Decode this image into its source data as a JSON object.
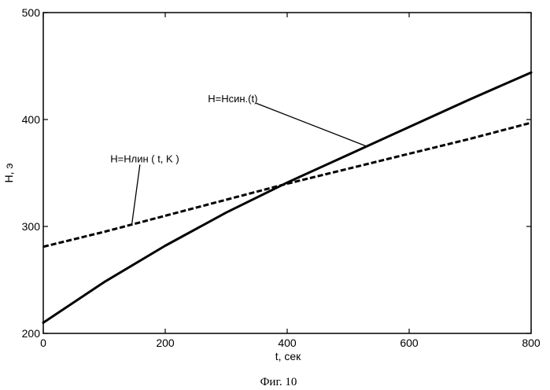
{
  "chart_data": {
    "type": "line",
    "xlabel": "t, сек",
    "ylabel": "H, э",
    "xlim": [
      0,
      800
    ],
    "ylim": [
      200,
      500
    ],
    "xticks": [
      0,
      200,
      400,
      600,
      800
    ],
    "yticks": [
      200,
      300,
      400,
      500
    ],
    "xtick_labels": [
      "0",
      "200",
      "400",
      "600",
      "800"
    ],
    "ytick_labels": [
      "200",
      "300",
      "400",
      "500"
    ],
    "grid": false,
    "series": [
      {
        "style": "solid",
        "x": [
          0,
          100,
          200,
          300,
          400,
          500,
          600,
          700,
          800
        ],
        "y": [
          210,
          248,
          282,
          313,
          341,
          367,
          393,
          419,
          444
        ]
      },
      {
        "style": "dashed",
        "x": [
          0,
          100,
          200,
          300,
          400,
          500,
          600,
          700,
          800
        ],
        "y": [
          281,
          295,
          310,
          325,
          340,
          354,
          368,
          382,
          397
        ]
      }
    ],
    "annotations": [
      {
        "text": "H=Hсин.(t)",
        "x": 270,
        "y": 416,
        "arrow_to": [
          530,
          375
        ]
      },
      {
        "text": "H=Hлин ( t, K )",
        "x": 110,
        "y": 360,
        "arrow_to": [
          145,
          301
        ]
      }
    ]
  },
  "caption": "Фиг. 10"
}
